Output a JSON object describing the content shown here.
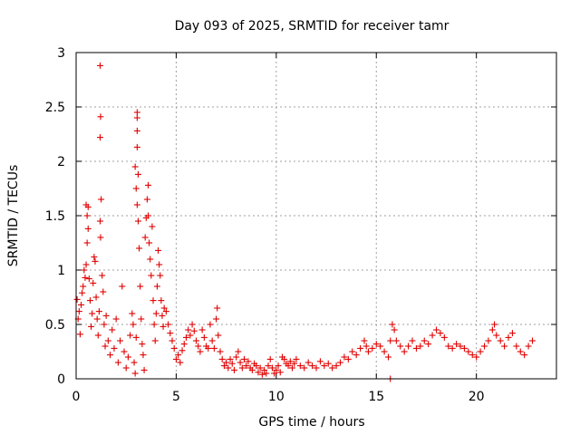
{
  "chart_data": {
    "type": "scatter",
    "title": "Day 093 of 2025, SRMTID for receiver tamr",
    "xlabel": "GPS time / hours",
    "ylabel": "SRMTID / TECUs",
    "xlim": [
      0,
      24
    ],
    "ylim": [
      0,
      3
    ],
    "xticks": [
      0,
      5,
      10,
      15,
      20
    ],
    "yticks": [
      0,
      0.5,
      1,
      1.5,
      2,
      2.5,
      3
    ],
    "ytick_labels": [
      "0",
      "0.5",
      "1",
      "1.5",
      "2",
      "2.5",
      "3"
    ],
    "grid": true,
    "marker": "+",
    "color": "#e00000",
    "series": [
      {
        "name": "SRMTID",
        "points": [
          [
            0.05,
            0.73
          ],
          [
            0.1,
            0.55
          ],
          [
            0.15,
            0.62
          ],
          [
            0.2,
            0.41
          ],
          [
            0.25,
            0.68
          ],
          [
            0.3,
            0.79
          ],
          [
            0.35,
            0.85
          ],
          [
            0.4,
            1.0
          ],
          [
            0.45,
            0.93
          ],
          [
            0.5,
            1.05
          ],
          [
            0.5,
            1.6
          ],
          [
            0.55,
            1.5
          ],
          [
            0.6,
            1.58
          ],
          [
            0.55,
            1.25
          ],
          [
            0.6,
            1.38
          ],
          [
            0.65,
            0.92
          ],
          [
            0.7,
            0.72
          ],
          [
            0.75,
            0.48
          ],
          [
            0.8,
            0.6
          ],
          [
            0.85,
            0.88
          ],
          [
            0.9,
            1.12
          ],
          [
            0.95,
            1.08
          ],
          [
            1.0,
            0.75
          ],
          [
            1.05,
            0.55
          ],
          [
            1.1,
            0.4
          ],
          [
            1.15,
            0.62
          ],
          [
            1.2,
            1.45
          ],
          [
            1.22,
            1.3
          ],
          [
            1.25,
            1.65
          ],
          [
            1.2,
            2.88
          ],
          [
            1.22,
            2.41
          ],
          [
            1.2,
            2.22
          ],
          [
            1.3,
            0.95
          ],
          [
            1.35,
            0.8
          ],
          [
            1.4,
            0.5
          ],
          [
            1.45,
            0.3
          ],
          [
            1.5,
            0.58
          ],
          [
            1.6,
            0.35
          ],
          [
            1.7,
            0.22
          ],
          [
            1.8,
            0.45
          ],
          [
            1.9,
            0.28
          ],
          [
            2.0,
            0.55
          ],
          [
            2.1,
            0.15
          ],
          [
            2.2,
            0.35
          ],
          [
            2.3,
            0.85
          ],
          [
            2.4,
            0.25
          ],
          [
            2.5,
            0.1
          ],
          [
            2.6,
            0.2
          ],
          [
            2.7,
            0.4
          ],
          [
            2.8,
            0.6
          ],
          [
            2.85,
            0.5
          ],
          [
            2.9,
            0.15
          ],
          [
            2.95,
            0.05
          ],
          [
            3.0,
            0.38
          ],
          [
            2.95,
            1.95
          ],
          [
            3.0,
            1.75
          ],
          [
            3.05,
            1.6
          ],
          [
            3.05,
            2.45
          ],
          [
            3.05,
            2.4
          ],
          [
            3.05,
            2.28
          ],
          [
            3.05,
            2.13
          ],
          [
            3.1,
            1.88
          ],
          [
            3.1,
            1.45
          ],
          [
            3.15,
            1.2
          ],
          [
            3.2,
            0.85
          ],
          [
            3.25,
            0.55
          ],
          [
            3.3,
            0.32
          ],
          [
            3.35,
            0.22
          ],
          [
            3.4,
            0.08
          ],
          [
            3.45,
            1.3
          ],
          [
            3.5,
            1.48
          ],
          [
            3.55,
            1.65
          ],
          [
            3.6,
            1.78
          ],
          [
            3.6,
            1.5
          ],
          [
            3.65,
            1.25
          ],
          [
            3.7,
            1.1
          ],
          [
            3.75,
            0.95
          ],
          [
            3.8,
            1.4
          ],
          [
            3.85,
            0.72
          ],
          [
            3.9,
            0.5
          ],
          [
            3.95,
            0.35
          ],
          [
            4.0,
            0.6
          ],
          [
            4.05,
            0.85
          ],
          [
            4.1,
            1.18
          ],
          [
            4.15,
            1.05
          ],
          [
            4.2,
            0.95
          ],
          [
            4.25,
            0.72
          ],
          [
            4.3,
            0.58
          ],
          [
            4.35,
            0.48
          ],
          [
            4.4,
            0.65
          ],
          [
            4.5,
            0.62
          ],
          [
            4.6,
            0.5
          ],
          [
            4.7,
            0.42
          ],
          [
            4.8,
            0.35
          ],
          [
            4.9,
            0.28
          ],
          [
            5.0,
            0.18
          ],
          [
            5.1,
            0.22
          ],
          [
            5.2,
            0.15
          ],
          [
            5.3,
            0.26
          ],
          [
            5.4,
            0.32
          ],
          [
            5.5,
            0.38
          ],
          [
            5.6,
            0.45
          ],
          [
            5.7,
            0.4
          ],
          [
            5.8,
            0.5
          ],
          [
            5.9,
            0.44
          ],
          [
            6.0,
            0.35
          ],
          [
            6.1,
            0.3
          ],
          [
            6.2,
            0.25
          ],
          [
            6.3,
            0.45
          ],
          [
            6.4,
            0.38
          ],
          [
            6.5,
            0.3
          ],
          [
            6.6,
            0.28
          ],
          [
            6.7,
            0.5
          ],
          [
            6.8,
            0.35
          ],
          [
            6.9,
            0.28
          ],
          [
            7.0,
            0.55
          ],
          [
            7.05,
            0.65
          ],
          [
            7.1,
            0.4
          ],
          [
            7.2,
            0.25
          ],
          [
            7.3,
            0.18
          ],
          [
            7.4,
            0.12
          ],
          [
            7.5,
            0.15
          ],
          [
            7.6,
            0.1
          ],
          [
            7.7,
            0.18
          ],
          [
            7.8,
            0.14
          ],
          [
            7.9,
            0.08
          ],
          [
            8.0,
            0.2
          ],
          [
            8.1,
            0.25
          ],
          [
            8.2,
            0.15
          ],
          [
            8.3,
            0.1
          ],
          [
            8.4,
            0.18
          ],
          [
            8.5,
            0.12
          ],
          [
            8.6,
            0.16
          ],
          [
            8.7,
            0.1
          ],
          [
            8.8,
            0.08
          ],
          [
            8.9,
            0.14
          ],
          [
            9.0,
            0.12
          ],
          [
            9.1,
            0.06
          ],
          [
            9.2,
            0.1
          ],
          [
            9.3,
            0.04
          ],
          [
            9.4,
            0.08
          ],
          [
            9.5,
            0.05
          ],
          [
            9.6,
            0.12
          ],
          [
            9.7,
            0.18
          ],
          [
            9.8,
            0.1
          ],
          [
            9.9,
            0.05
          ],
          [
            10.0,
            0.08
          ],
          [
            10.1,
            0.12
          ],
          [
            10.2,
            0.06
          ],
          [
            10.3,
            0.2
          ],
          [
            10.4,
            0.18
          ],
          [
            10.5,
            0.14
          ],
          [
            10.6,
            0.12
          ],
          [
            10.7,
            0.16
          ],
          [
            10.8,
            0.1
          ],
          [
            10.9,
            0.14
          ],
          [
            11.0,
            0.18
          ],
          [
            11.2,
            0.12
          ],
          [
            11.4,
            0.1
          ],
          [
            11.6,
            0.15
          ],
          [
            11.8,
            0.12
          ],
          [
            12.0,
            0.1
          ],
          [
            12.2,
            0.16
          ],
          [
            12.4,
            0.12
          ],
          [
            12.6,
            0.14
          ],
          [
            12.8,
            0.1
          ],
          [
            13.0,
            0.12
          ],
          [
            13.2,
            0.15
          ],
          [
            13.4,
            0.2
          ],
          [
            13.6,
            0.18
          ],
          [
            13.8,
            0.25
          ],
          [
            14.0,
            0.22
          ],
          [
            14.2,
            0.28
          ],
          [
            14.4,
            0.35
          ],
          [
            14.5,
            0.3
          ],
          [
            14.6,
            0.25
          ],
          [
            14.8,
            0.28
          ],
          [
            15.0,
            0.32
          ],
          [
            15.2,
            0.3
          ],
          [
            15.4,
            0.25
          ],
          [
            15.6,
            0.2
          ],
          [
            15.7,
            0.35
          ],
          [
            15.8,
            0.5
          ],
          [
            15.9,
            0.45
          ],
          [
            16.0,
            0.35
          ],
          [
            16.2,
            0.3
          ],
          [
            16.4,
            0.25
          ],
          [
            16.6,
            0.3
          ],
          [
            16.8,
            0.35
          ],
          [
            17.0,
            0.28
          ],
          [
            17.2,
            0.3
          ],
          [
            17.4,
            0.35
          ],
          [
            17.6,
            0.32
          ],
          [
            17.8,
            0.4
          ],
          [
            18.0,
            0.45
          ],
          [
            18.2,
            0.42
          ],
          [
            18.4,
            0.38
          ],
          [
            18.6,
            0.3
          ],
          [
            18.8,
            0.28
          ],
          [
            19.0,
            0.32
          ],
          [
            19.2,
            0.3
          ],
          [
            19.4,
            0.28
          ],
          [
            19.6,
            0.25
          ],
          [
            19.8,
            0.22
          ],
          [
            20.0,
            0.2
          ],
          [
            20.2,
            0.25
          ],
          [
            20.4,
            0.3
          ],
          [
            20.6,
            0.35
          ],
          [
            20.8,
            0.45
          ],
          [
            20.9,
            0.5
          ],
          [
            21.0,
            0.4
          ],
          [
            21.2,
            0.35
          ],
          [
            21.4,
            0.3
          ],
          [
            21.6,
            0.38
          ],
          [
            21.8,
            0.42
          ],
          [
            22.0,
            0.3
          ],
          [
            22.2,
            0.25
          ],
          [
            22.4,
            0.22
          ],
          [
            22.6,
            0.3
          ],
          [
            22.8,
            0.35
          ],
          [
            15.7,
            0.0
          ]
        ]
      }
    ]
  }
}
